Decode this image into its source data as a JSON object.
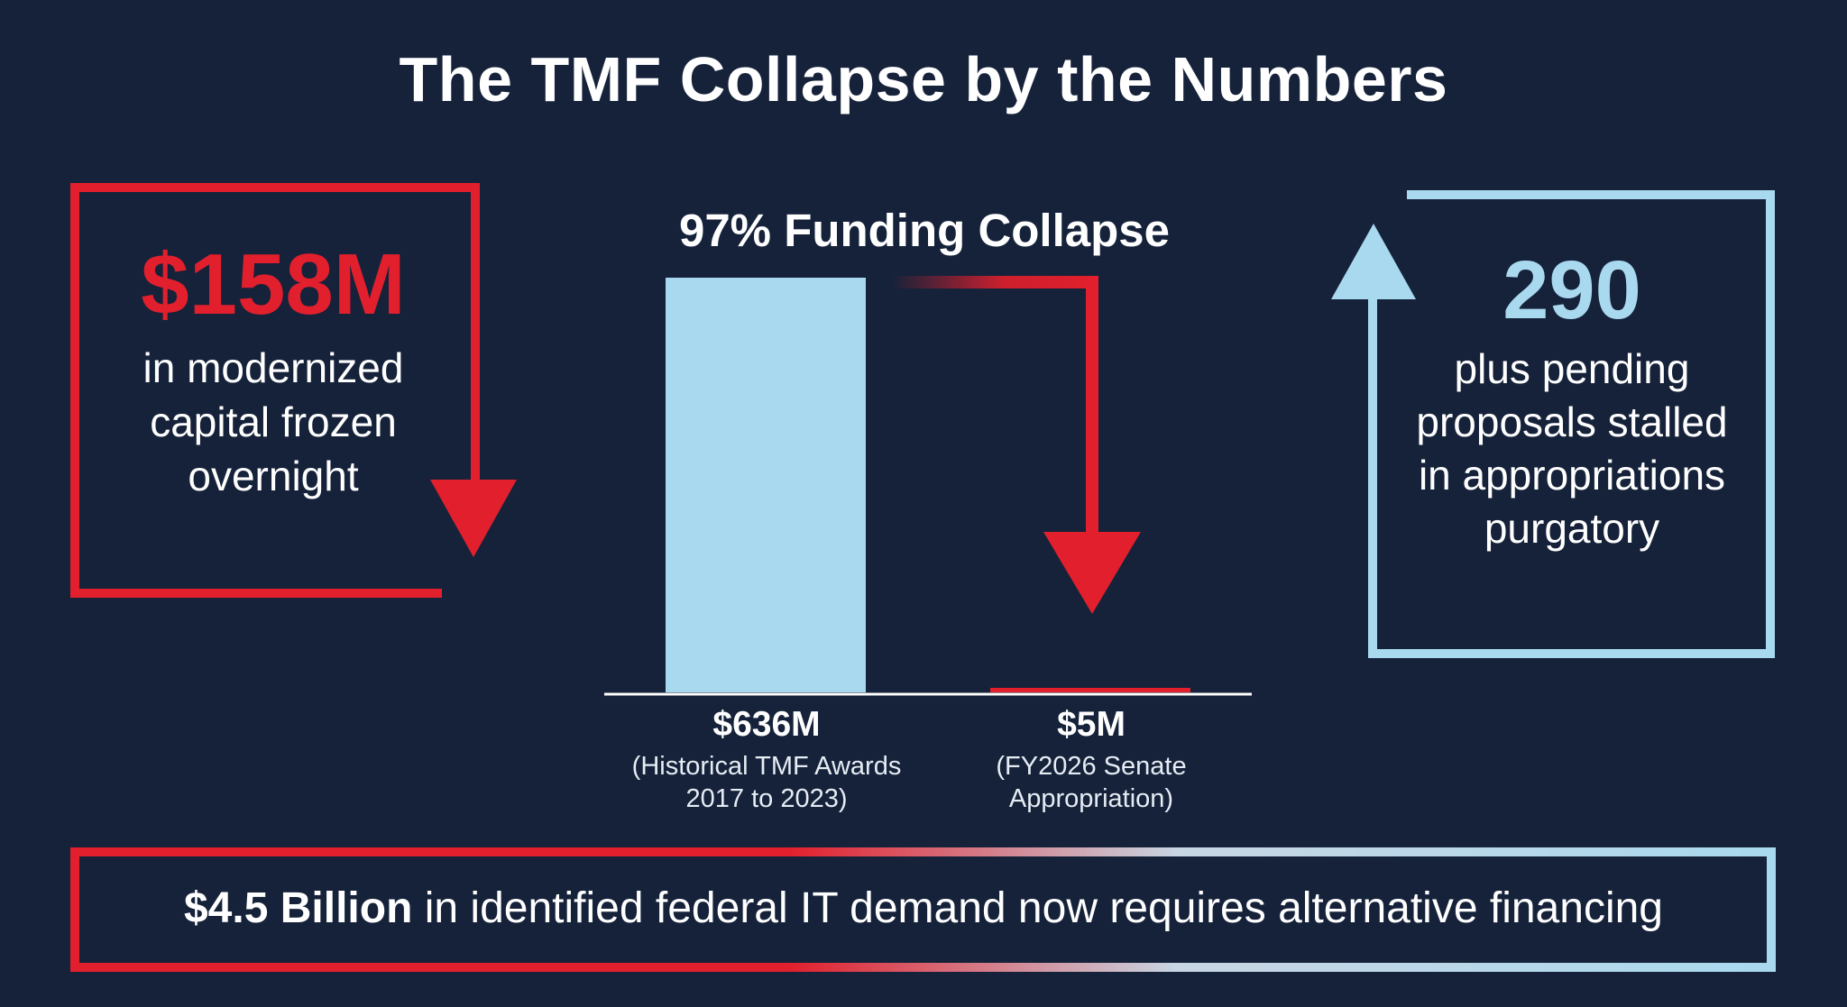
{
  "title": "The TMF Collapse by the Numbers",
  "left_stat": {
    "value": "$158M",
    "description": "in modernized capital frozen overnight",
    "color": "#e21f2c"
  },
  "right_stat": {
    "value": "290",
    "description": "plus pending proposals stalled in appropriations purgatory",
    "color": "#a9d9ee"
  },
  "banner": {
    "bold": "$4.5 Billion",
    "text": " in identified federal IT demand now requires alternative financing"
  },
  "colors": {
    "background": "#15223a",
    "red": "#e21f2c",
    "light_blue": "#a9d9ee"
  },
  "chart_data": {
    "type": "bar",
    "title": "97% Funding Collapse",
    "xlabel": "",
    "ylabel": "",
    "grid": false,
    "ylim": [
      0,
      636
    ],
    "categories": [
      {
        "value_label": "$636M",
        "note": "(Historical TMF Awards 2017 to 2023)",
        "value": 636,
        "color": "#a9d9ee"
      },
      {
        "value_label": "$5M",
        "note": "(FY2026 Senate Appropriation)",
        "value": 5,
        "color": "#e21f2c"
      }
    ]
  }
}
